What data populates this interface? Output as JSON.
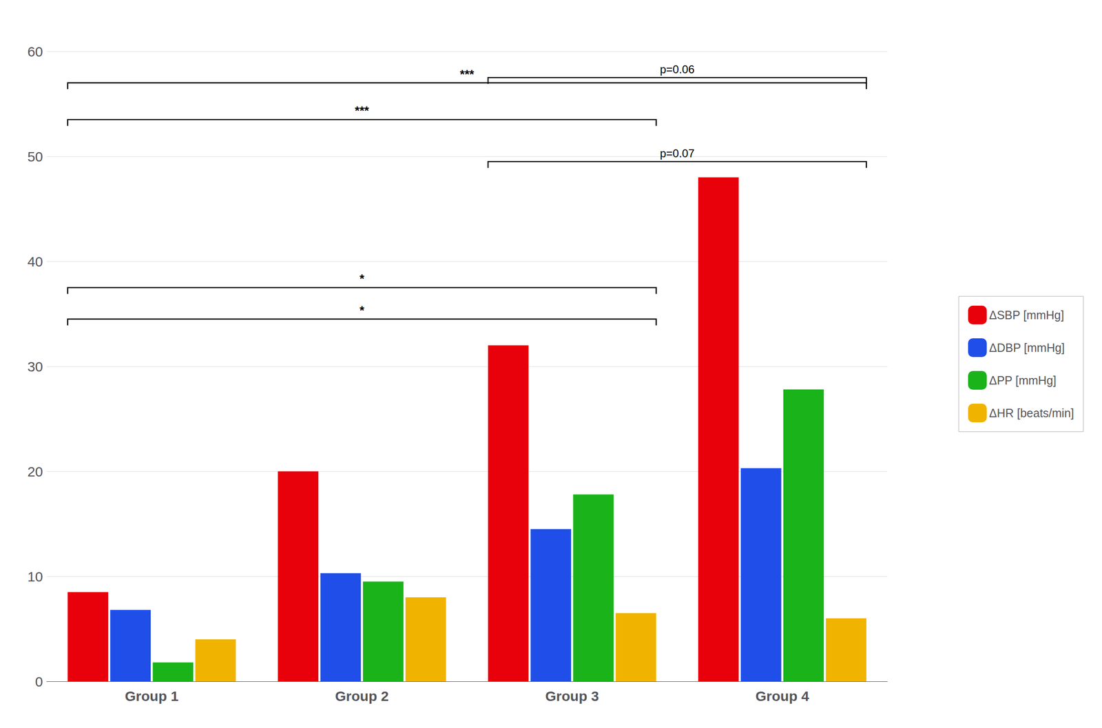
{
  "chart_data": {
    "type": "bar",
    "categories": [
      "Group 1",
      "Group 2",
      "Group 3",
      "Group 4"
    ],
    "series": [
      {
        "name": "ΔSBP [mmHg]",
        "color": "#e8000b",
        "values": [
          8.5,
          20.0,
          32.0,
          48.0
        ]
      },
      {
        "name": "ΔDBP [mmHg]",
        "color": "#1f4fe8",
        "values": [
          6.8,
          10.3,
          14.5,
          20.3
        ]
      },
      {
        "name": "ΔPP [mmHg]",
        "color": "#1ab41a",
        "values": [
          1.8,
          9.5,
          17.8,
          27.8
        ]
      },
      {
        "name": "ΔHR [beats/min]",
        "color": "#f0b400",
        "values": [
          4.0,
          8.0,
          6.5,
          6.0
        ]
      }
    ],
    "ylim": [
      0,
      60
    ],
    "yticks": [
      0,
      10,
      20,
      30,
      40,
      50,
      60
    ],
    "grid": true,
    "legend": "right",
    "annotations": [
      {
        "text": "*",
        "y": 34.5,
        "x1": "Group 1",
        "x2": "Group 3"
      },
      {
        "text": "*",
        "y": 37.5,
        "x1": "Group 1",
        "x2": "Group 3"
      },
      {
        "text": "***",
        "y": 53.5,
        "x1": "Group 1",
        "x2": "Group 3"
      },
      {
        "text": "***",
        "y": 57.0,
        "x1": "Group 1",
        "x2": "Group 4"
      },
      {
        "text": "p=0.07",
        "y": 49.5,
        "x1": "Group 3",
        "x2": "Group 4"
      },
      {
        "text": "p=0.06",
        "y": 57.5,
        "x1": "Group 3",
        "x2": "Group 4"
      }
    ]
  }
}
